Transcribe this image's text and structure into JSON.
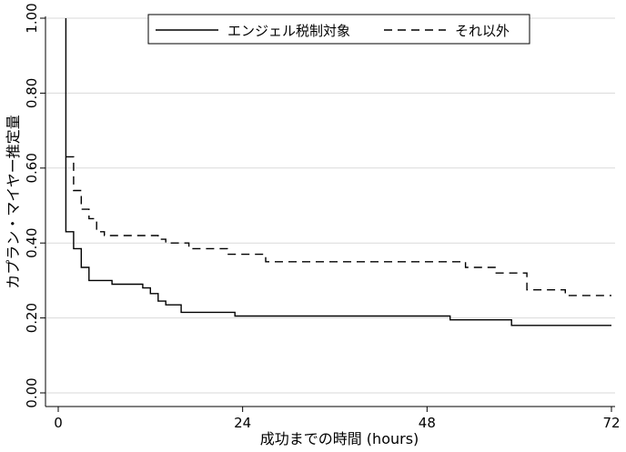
{
  "chart_data": {
    "type": "line",
    "step": true,
    "title": "",
    "xlabel": "成功までの時間 (hours)",
    "ylabel": "カプラン・マイヤー推定量",
    "xlim": [
      0,
      72
    ],
    "ylim": [
      0,
      1
    ],
    "x_ticks": [
      0,
      24,
      48,
      72
    ],
    "x_tick_labels": [
      "0",
      "24",
      "48",
      "72"
    ],
    "y_ticks": [
      0,
      0.2,
      0.4,
      0.6,
      0.8,
      1.0
    ],
    "y_tick_labels": [
      "0.00",
      "0.20",
      "0.40",
      "0.60",
      "0.80",
      "1.00"
    ],
    "grid": "horizontal",
    "legend_position": "top",
    "series": [
      {
        "name": "エンジェル税制対象",
        "style": "solid",
        "color": "#000000",
        "points": [
          [
            1,
            1.0
          ],
          [
            1,
            0.43
          ],
          [
            2,
            0.43
          ],
          [
            2,
            0.385
          ],
          [
            3,
            0.385
          ],
          [
            3,
            0.335
          ],
          [
            4,
            0.335
          ],
          [
            4,
            0.3
          ],
          [
            7,
            0.3
          ],
          [
            7,
            0.29
          ],
          [
            11,
            0.29
          ],
          [
            11,
            0.28
          ],
          [
            12,
            0.28
          ],
          [
            12,
            0.265
          ],
          [
            13,
            0.265
          ],
          [
            13,
            0.245
          ],
          [
            14,
            0.245
          ],
          [
            14,
            0.235
          ],
          [
            16,
            0.235
          ],
          [
            16,
            0.215
          ],
          [
            23,
            0.215
          ],
          [
            23,
            0.205
          ],
          [
            51,
            0.205
          ],
          [
            51,
            0.195
          ],
          [
            59,
            0.195
          ],
          [
            59,
            0.18
          ],
          [
            72,
            0.18
          ]
        ]
      },
      {
        "name": "それ以外",
        "style": "dashed",
        "color": "#000000",
        "points": [
          [
            1,
            0.63
          ],
          [
            2,
            0.63
          ],
          [
            2,
            0.54
          ],
          [
            3,
            0.54
          ],
          [
            3,
            0.49
          ],
          [
            4,
            0.49
          ],
          [
            4,
            0.465
          ],
          [
            5,
            0.465
          ],
          [
            5,
            0.43
          ],
          [
            6,
            0.43
          ],
          [
            6,
            0.42
          ],
          [
            13,
            0.42
          ],
          [
            13,
            0.41
          ],
          [
            14,
            0.41
          ],
          [
            14,
            0.4
          ],
          [
            17,
            0.4
          ],
          [
            17,
            0.385
          ],
          [
            22,
            0.385
          ],
          [
            22,
            0.37
          ],
          [
            27,
            0.37
          ],
          [
            27,
            0.35
          ],
          [
            53,
            0.35
          ],
          [
            53,
            0.335
          ],
          [
            57,
            0.335
          ],
          [
            57,
            0.32
          ],
          [
            61,
            0.32
          ],
          [
            61,
            0.275
          ],
          [
            66,
            0.275
          ],
          [
            66,
            0.26
          ],
          [
            72,
            0.26
          ]
        ]
      }
    ]
  }
}
